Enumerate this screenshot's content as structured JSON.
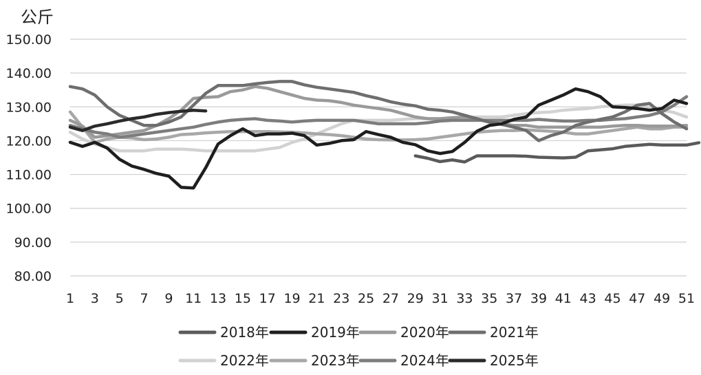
{
  "chart_data": {
    "type": "line",
    "unit_label": "公斤",
    "y_ticks": [
      "150.00",
      "140.00",
      "130.00",
      "120.00",
      "110.00",
      "100.00",
      "90.00",
      "80.00"
    ],
    "ylim": [
      80,
      150
    ],
    "x_tick_labels": [
      "1",
      "3",
      "5",
      "7",
      "9",
      "11",
      "13",
      "15",
      "17",
      "19",
      "21",
      "23",
      "25",
      "27",
      "29",
      "31",
      "33",
      "35",
      "37",
      "39",
      "41",
      "43",
      "45",
      "47",
      "49",
      "51"
    ],
    "xlim": [
      1,
      51
    ],
    "grid": "horizontal",
    "legend_position": "bottom",
    "series": [
      {
        "name": "2018年",
        "color": "#5a5a5a",
        "x_start": 29,
        "values": [
          115.5,
          114.8,
          113.8,
          114.3,
          113.7,
          115.5,
          115.5,
          115.5,
          115.5,
          115.4,
          115.1,
          115.0,
          114.9,
          115.1,
          117.0,
          117.3,
          117.6,
          118.3,
          118.6,
          118.9,
          118.7,
          118.7,
          118.7,
          119.4
        ]
      },
      {
        "name": "2019年",
        "color": "#1e1e1e",
        "x_start": 1,
        "values": [
          119.5,
          118.3,
          119.5,
          117.8,
          114.5,
          112.5,
          111.5,
          110.3,
          109.5,
          106.2,
          106.0,
          112.0,
          119.0,
          121.5,
          123.5,
          121.5,
          122.0,
          122.0,
          122.2,
          121.5,
          118.7,
          119.2,
          120.0,
          120.3,
          122.7,
          121.8,
          121.0,
          119.5,
          118.8,
          117.0,
          116.2,
          116.8,
          119.5,
          122.8,
          124.5,
          125.0,
          126.3,
          127.0,
          130.5,
          132.0,
          133.5,
          135.3,
          134.5,
          133.0,
          130.0,
          129.8,
          129.5,
          129.0,
          129.5,
          132.0,
          131.0
        ]
      },
      {
        "name": "2020年",
        "color": "#9a9a9a",
        "x_start": 1,
        "values": [
          126.0,
          124.3,
          121.0,
          121.5,
          122.0,
          122.5,
          123.0,
          124.5,
          126.5,
          129.0,
          132.5,
          132.8,
          133.0,
          134.5,
          135.0,
          136.0,
          135.5,
          134.5,
          133.5,
          132.5,
          132.0,
          131.8,
          131.3,
          130.5,
          130.0,
          129.5,
          129.0,
          128.0,
          127.0,
          126.5,
          126.5,
          126.8,
          127.0,
          126.3,
          125.5,
          125.0,
          124.5,
          124.5,
          124.0,
          124.0,
          124.0,
          124.0,
          124.0,
          124.0,
          124.3,
          124.5,
          124.5,
          124.3,
          124.3,
          124.3,
          124.5
        ]
      },
      {
        "name": "2021年",
        "color": "#6e6e6e",
        "x_start": 1,
        "values": [
          136.0,
          135.3,
          133.5,
          130.0,
          127.5,
          126.0,
          124.5,
          124.5,
          125.5,
          127.0,
          130.5,
          134.0,
          136.3,
          136.3,
          136.3,
          136.8,
          137.2,
          137.5,
          137.5,
          136.5,
          135.8,
          135.3,
          134.8,
          134.3,
          133.3,
          132.5,
          131.5,
          130.8,
          130.3,
          129.3,
          129.0,
          128.5,
          127.5,
          126.5,
          125.5,
          124.8,
          124.0,
          123.0,
          120.0,
          121.5,
          122.5,
          124.5,
          125.5,
          126.3,
          127.0,
          128.5,
          130.5,
          131.0,
          128.0,
          125.5,
          123.5
        ]
      },
      {
        "name": "2022年",
        "color": "#d2d2d2",
        "x_start": 1,
        "values": [
          122.5,
          120.5,
          119.0,
          118.0,
          117.0,
          117.0,
          117.0,
          117.5,
          117.5,
          117.5,
          117.3,
          117.0,
          117.0,
          117.0,
          117.0,
          117.0,
          117.5,
          118.0,
          119.5,
          120.5,
          122.0,
          123.5,
          125.0,
          126.0,
          126.0,
          126.0,
          126.0,
          126.3,
          126.5,
          126.5,
          126.5,
          126.5,
          126.8,
          127.0,
          127.0,
          127.0,
          127.5,
          128.0,
          128.3,
          128.5,
          129.0,
          129.3,
          129.5,
          130.0,
          130.3,
          130.5,
          130.5,
          129.8,
          129.0,
          128.3,
          127.0
        ]
      },
      {
        "name": "2023年",
        "color": "#a8a8a8",
        "x_start": 1,
        "values": [
          128.5,
          124.0,
          119.5,
          120.5,
          121.0,
          120.8,
          120.3,
          120.5,
          121.0,
          121.8,
          122.0,
          122.3,
          122.5,
          122.7,
          122.7,
          122.7,
          122.7,
          122.6,
          122.5,
          122.3,
          122.0,
          121.8,
          121.5,
          121.0,
          120.5,
          120.3,
          120.2,
          120.2,
          120.3,
          120.5,
          121.0,
          121.5,
          122.0,
          122.5,
          122.8,
          123.0,
          123.0,
          123.2,
          123.0,
          122.8,
          122.5,
          122.0,
          122.0,
          122.5,
          123.0,
          123.5,
          124.0,
          123.5,
          123.5,
          124.0,
          124.0
        ]
      },
      {
        "name": "2024年",
        "color": "#7d7d7d",
        "x_start": 1,
        "values": [
          124.5,
          123.5,
          122.5,
          122.0,
          121.0,
          121.5,
          122.0,
          122.5,
          123.0,
          123.5,
          124.0,
          124.8,
          125.5,
          126.0,
          126.3,
          126.5,
          126.0,
          125.8,
          125.5,
          125.8,
          126.0,
          126.0,
          126.0,
          126.0,
          125.5,
          125.0,
          125.0,
          125.0,
          125.0,
          125.3,
          125.8,
          126.0,
          126.0,
          126.0,
          126.0,
          126.0,
          126.0,
          126.0,
          126.3,
          126.0,
          125.8,
          125.8,
          126.0,
          126.0,
          126.3,
          126.5,
          127.0,
          127.5,
          128.5,
          130.5,
          133.0
        ]
      },
      {
        "name": "2025年",
        "color": "#2a2a2a",
        "x_start": 1,
        "values": [
          124.0,
          123.0,
          124.3,
          125.0,
          125.8,
          126.5,
          127.0,
          127.8,
          128.3,
          128.7,
          129.0,
          128.8
        ]
      }
    ]
  }
}
